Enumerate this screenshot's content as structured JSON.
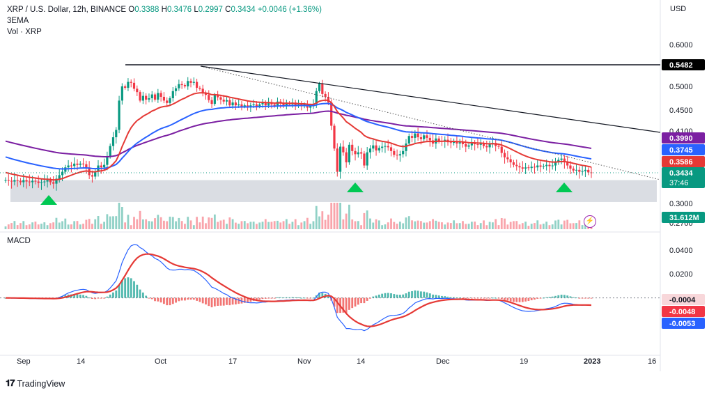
{
  "legend": {
    "symbol": "XRP / U.S. Dollar, 12h, BINANCE",
    "o_label": "O",
    "o": "0.3388",
    "h_label": "H",
    "h": "0.3476",
    "l_label": "L",
    "l": "0.2997",
    "c_label": "C",
    "c": "0.3434",
    "change": "+0.0046 (+1.36%)",
    "ema": "3EMA",
    "vol": "Vol · XRP"
  },
  "currency": "USD",
  "macd_title": "MACD",
  "brand": "TradingView",
  "colors": {
    "up": "#089981",
    "down": "#f23645",
    "ema_red": "#e53935",
    "ema_blue": "#2962ff",
    "ema_purple": "#7b1fa2",
    "support_zone": "#d1d4dc",
    "arrow": "#00c853"
  },
  "chart_data": {
    "type": "candlestick",
    "price_axis": {
      "ticks": [
        "0.6000",
        "0.5000",
        "0.4500",
        "0.4100",
        "0.3000",
        "0.2700"
      ],
      "range": [
        0.27,
        0.6
      ]
    },
    "x_ticks": [
      "Sep",
      "14",
      "Oct",
      "17",
      "Nov",
      "14",
      "Dec",
      "19",
      "2023",
      "16"
    ],
    "last_price": "0.3434",
    "countdown": "37:46",
    "horizontal_resistance": "0.5482",
    "ema_labels": [
      {
        "name": "ema_purple",
        "value": "0.3990"
      },
      {
        "name": "ema_blue",
        "value": "0.3745"
      },
      {
        "name": "ema_red",
        "value": "0.3586"
      }
    ],
    "volume_label": "31.612M",
    "macd_axis": {
      "ticks": [
        "0.0400",
        "0.0200"
      ],
      "range": [
        -0.045,
        0.048
      ]
    },
    "macd_labels": [
      "-0.0004",
      "-0.0048",
      "-0.0053"
    ],
    "support_zone": [
      0.302,
      0.333
    ],
    "close_series": [
      0.333,
      0.332,
      0.331,
      0.333,
      0.332,
      0.33,
      0.333,
      0.331,
      0.33,
      0.332,
      0.331,
      0.329,
      0.33,
      0.331,
      0.333,
      0.33,
      0.328,
      0.335,
      0.34,
      0.345,
      0.352,
      0.355,
      0.354,
      0.358,
      0.356,
      0.358,
      0.357,
      0.352,
      0.34,
      0.338,
      0.345,
      0.355,
      0.352,
      0.356,
      0.37,
      0.386,
      0.4,
      0.412,
      0.47,
      0.5,
      0.497,
      0.51,
      0.508,
      0.495,
      0.488,
      0.47,
      0.48,
      0.472,
      0.475,
      0.483,
      0.472,
      0.486,
      0.478,
      0.47,
      0.465,
      0.475,
      0.49,
      0.496,
      0.505,
      0.503,
      0.5,
      0.512,
      0.508,
      0.51,
      0.497,
      0.495,
      0.486,
      0.482,
      0.471,
      0.463,
      0.482,
      0.477,
      0.472,
      0.468,
      0.471,
      0.46,
      0.466,
      0.46,
      0.462,
      0.458,
      0.46,
      0.456,
      0.46,
      0.462,
      0.458,
      0.462,
      0.465,
      0.46,
      0.466,
      0.462,
      0.459,
      0.468,
      0.464,
      0.46,
      0.465,
      0.462,
      0.466,
      0.46,
      0.462,
      0.458,
      0.462,
      0.455,
      0.458,
      0.463,
      0.49,
      0.506,
      0.484,
      0.478,
      0.466,
      0.42,
      0.382,
      0.345,
      0.385,
      0.376,
      0.36,
      0.388,
      0.378,
      0.373,
      0.376,
      0.374,
      0.355,
      0.376,
      0.382,
      0.387,
      0.379,
      0.383,
      0.385,
      0.386,
      0.384,
      0.378,
      0.372,
      0.371,
      0.373,
      0.378,
      0.39,
      0.402,
      0.399,
      0.406,
      0.4,
      0.397,
      0.403,
      0.399,
      0.395,
      0.39,
      0.398,
      0.394,
      0.393,
      0.396,
      0.392,
      0.391,
      0.394,
      0.39,
      0.392,
      0.389,
      0.385,
      0.387,
      0.39,
      0.389,
      0.388,
      0.39,
      0.386,
      0.384,
      0.389,
      0.391,
      0.386,
      0.385,
      0.375,
      0.368,
      0.365,
      0.36,
      0.356,
      0.354,
      0.352,
      0.35,
      0.352,
      0.351,
      0.353,
      0.352,
      0.355,
      0.353,
      0.354,
      0.356,
      0.354,
      0.355,
      0.36,
      0.364,
      0.366,
      0.36,
      0.355,
      0.35,
      0.347,
      0.348,
      0.345,
      0.346,
      0.348,
      0.344,
      0.343
    ]
  }
}
